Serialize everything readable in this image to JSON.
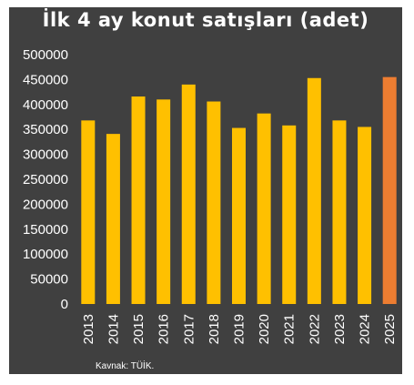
{
  "chart_data": {
    "type": "bar",
    "title": "İlk 4 ay konut satışları (adet)",
    "categories": [
      "2013",
      "2014",
      "2015",
      "2016",
      "2017",
      "2018",
      "2019",
      "2020",
      "2021",
      "2022",
      "2023",
      "2024",
      "2025"
    ],
    "values": [
      368000,
      341000,
      416000,
      410000,
      440000,
      406000,
      353000,
      382000,
      358000,
      453000,
      368000,
      355000,
      455000
    ],
    "highlight_index": 12,
    "ylim": [
      0,
      500000
    ],
    "yticks": [
      "500000",
      "450000",
      "400000",
      "350000",
      "300000",
      "250000",
      "200000",
      "150000",
      "100000",
      "50000",
      "0"
    ],
    "ytick_values": [
      500000,
      450000,
      400000,
      350000,
      300000,
      250000,
      200000,
      150000,
      100000,
      50000,
      0
    ],
    "xlabel": "",
    "ylabel": "",
    "grid": false,
    "colors": {
      "bar": "#FFC000",
      "highlight": "#ED7D31",
      "background": "#404040",
      "text": "#FFFFFF"
    }
  },
  "source": "Kavnak: TÜİK."
}
